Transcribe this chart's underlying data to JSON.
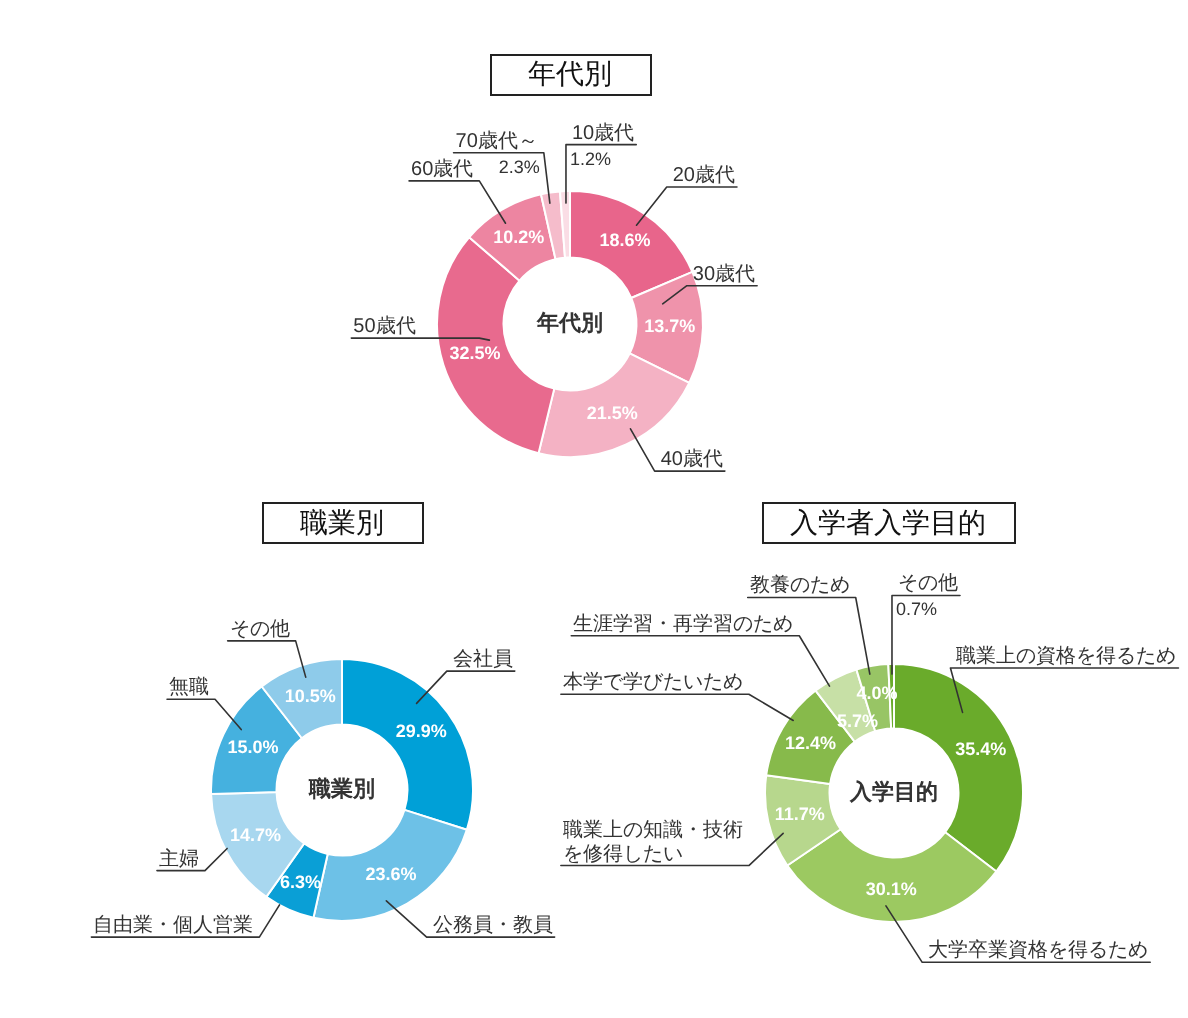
{
  "chart_data": [
    {
      "type": "donut",
      "title": "年代別",
      "annotations": [
        "年代別"
      ],
      "categories": [
        "20歳代",
        "30歳代",
        "40歳代",
        "50歳代",
        "60歳代",
        "70歳代～",
        "10歳代"
      ],
      "values": [
        18.6,
        13.7,
        21.5,
        32.5,
        10.2,
        2.3,
        1.2
      ],
      "value_labels": [
        "18.6%",
        "13.7%",
        "21.5%",
        "32.5%",
        "10.2%",
        "2.3%",
        "1.2%"
      ],
      "colors": [
        "#e8658b",
        "#ef93ab",
        "#f4b2c4",
        "#e86a8e",
        "#ed85a1",
        "#f5bccb",
        "#fadde5"
      ]
    },
    {
      "type": "donut",
      "title": "職業別",
      "annotations": [
        "職業別"
      ],
      "categories": [
        "会社員",
        "公務員・教員",
        "自由業・個人営業",
        "主婦",
        "無職",
        "その他"
      ],
      "values": [
        29.9,
        23.6,
        6.3,
        14.7,
        15.0,
        10.5
      ],
      "value_labels": [
        "29.9%",
        "23.6%",
        "6.3%",
        "14.7%",
        "15.0%",
        "10.5%"
      ],
      "colors": [
        "#00a0d7",
        "#6dc1e7",
        "#0a9fd6",
        "#a8d7ef",
        "#45b1df",
        "#8ecbea"
      ]
    },
    {
      "type": "donut",
      "title": "入学者入学目的",
      "annotations": [
        "入学目的"
      ],
      "categories": [
        "職業上の資格を得るため",
        "大学卒業資格を得るため",
        "職業上の知識・技術を修得したい",
        "本学で学びたいため",
        "生涯学習・再学習のため",
        "教養のため",
        "その他"
      ],
      "values": [
        35.4,
        30.1,
        11.7,
        12.4,
        5.7,
        4.0,
        0.7
      ],
      "value_labels": [
        "35.4%",
        "30.1%",
        "11.7%",
        "12.4%",
        "5.7%",
        "4.0%",
        "0.7%"
      ],
      "colors": [
        "#6aab2b",
        "#9cc961",
        "#b7d78d",
        "#87ba4b",
        "#c7e0a6",
        "#98c565",
        "#6aab2b"
      ]
    }
  ]
}
